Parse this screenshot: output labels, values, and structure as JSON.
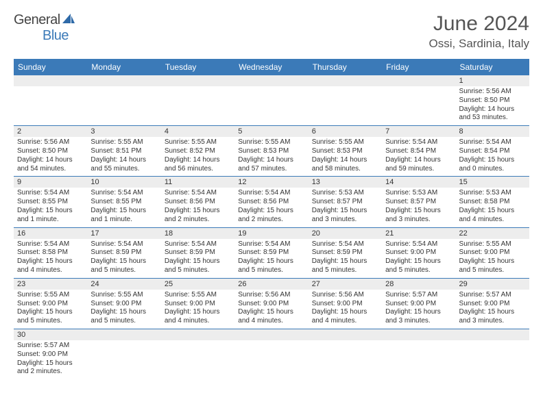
{
  "logo": {
    "general": "General",
    "blue": "Blue"
  },
  "title": "June 2024",
  "location": "Ossi, Sardinia, Italy",
  "colors": {
    "header_bg": "#3b7ab8",
    "row_border": "#3b7ab8",
    "daynum_bg": "#ededed",
    "text": "#333333",
    "title_text": "#555555"
  },
  "weekdays": [
    "Sunday",
    "Monday",
    "Tuesday",
    "Wednesday",
    "Thursday",
    "Friday",
    "Saturday"
  ],
  "weeks": [
    [
      null,
      null,
      null,
      null,
      null,
      null,
      {
        "n": "1",
        "sr": "5:56 AM",
        "ss": "8:50 PM",
        "dl": "14 hours and 53 minutes."
      }
    ],
    [
      {
        "n": "2",
        "sr": "5:56 AM",
        "ss": "8:50 PM",
        "dl": "14 hours and 54 minutes."
      },
      {
        "n": "3",
        "sr": "5:55 AM",
        "ss": "8:51 PM",
        "dl": "14 hours and 55 minutes."
      },
      {
        "n": "4",
        "sr": "5:55 AM",
        "ss": "8:52 PM",
        "dl": "14 hours and 56 minutes."
      },
      {
        "n": "5",
        "sr": "5:55 AM",
        "ss": "8:53 PM",
        "dl": "14 hours and 57 minutes."
      },
      {
        "n": "6",
        "sr": "5:55 AM",
        "ss": "8:53 PM",
        "dl": "14 hours and 58 minutes."
      },
      {
        "n": "7",
        "sr": "5:54 AM",
        "ss": "8:54 PM",
        "dl": "14 hours and 59 minutes."
      },
      {
        "n": "8",
        "sr": "5:54 AM",
        "ss": "8:54 PM",
        "dl": "15 hours and 0 minutes."
      }
    ],
    [
      {
        "n": "9",
        "sr": "5:54 AM",
        "ss": "8:55 PM",
        "dl": "15 hours and 1 minute."
      },
      {
        "n": "10",
        "sr": "5:54 AM",
        "ss": "8:55 PM",
        "dl": "15 hours and 1 minute."
      },
      {
        "n": "11",
        "sr": "5:54 AM",
        "ss": "8:56 PM",
        "dl": "15 hours and 2 minutes."
      },
      {
        "n": "12",
        "sr": "5:54 AM",
        "ss": "8:56 PM",
        "dl": "15 hours and 2 minutes."
      },
      {
        "n": "13",
        "sr": "5:53 AM",
        "ss": "8:57 PM",
        "dl": "15 hours and 3 minutes."
      },
      {
        "n": "14",
        "sr": "5:53 AM",
        "ss": "8:57 PM",
        "dl": "15 hours and 3 minutes."
      },
      {
        "n": "15",
        "sr": "5:53 AM",
        "ss": "8:58 PM",
        "dl": "15 hours and 4 minutes."
      }
    ],
    [
      {
        "n": "16",
        "sr": "5:54 AM",
        "ss": "8:58 PM",
        "dl": "15 hours and 4 minutes."
      },
      {
        "n": "17",
        "sr": "5:54 AM",
        "ss": "8:59 PM",
        "dl": "15 hours and 5 minutes."
      },
      {
        "n": "18",
        "sr": "5:54 AM",
        "ss": "8:59 PM",
        "dl": "15 hours and 5 minutes."
      },
      {
        "n": "19",
        "sr": "5:54 AM",
        "ss": "8:59 PM",
        "dl": "15 hours and 5 minutes."
      },
      {
        "n": "20",
        "sr": "5:54 AM",
        "ss": "8:59 PM",
        "dl": "15 hours and 5 minutes."
      },
      {
        "n": "21",
        "sr": "5:54 AM",
        "ss": "9:00 PM",
        "dl": "15 hours and 5 minutes."
      },
      {
        "n": "22",
        "sr": "5:55 AM",
        "ss": "9:00 PM",
        "dl": "15 hours and 5 minutes."
      }
    ],
    [
      {
        "n": "23",
        "sr": "5:55 AM",
        "ss": "9:00 PM",
        "dl": "15 hours and 5 minutes."
      },
      {
        "n": "24",
        "sr": "5:55 AM",
        "ss": "9:00 PM",
        "dl": "15 hours and 5 minutes."
      },
      {
        "n": "25",
        "sr": "5:55 AM",
        "ss": "9:00 PM",
        "dl": "15 hours and 4 minutes."
      },
      {
        "n": "26",
        "sr": "5:56 AM",
        "ss": "9:00 PM",
        "dl": "15 hours and 4 minutes."
      },
      {
        "n": "27",
        "sr": "5:56 AM",
        "ss": "9:00 PM",
        "dl": "15 hours and 4 minutes."
      },
      {
        "n": "28",
        "sr": "5:57 AM",
        "ss": "9:00 PM",
        "dl": "15 hours and 3 minutes."
      },
      {
        "n": "29",
        "sr": "5:57 AM",
        "ss": "9:00 PM",
        "dl": "15 hours and 3 minutes."
      }
    ],
    [
      {
        "n": "30",
        "sr": "5:57 AM",
        "ss": "9:00 PM",
        "dl": "15 hours and 2 minutes."
      },
      null,
      null,
      null,
      null,
      null,
      null
    ]
  ],
  "labels": {
    "sunrise": "Sunrise:",
    "sunset": "Sunset:",
    "daylight": "Daylight:"
  }
}
